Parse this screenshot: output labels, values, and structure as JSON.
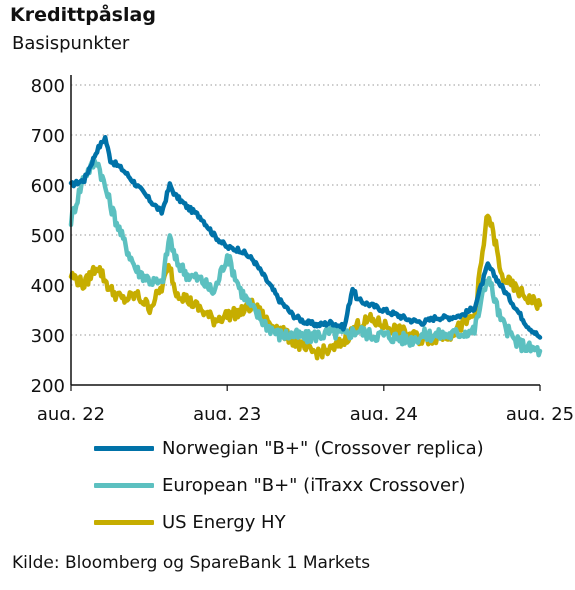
{
  "chart_data": {
    "type": "line",
    "title": "Kredittpåslag",
    "subtitle": "Basispunkter",
    "ylim": [
      200,
      800
    ],
    "yticks": [
      200,
      300,
      400,
      500,
      600,
      700,
      800
    ],
    "xlim": [
      "2022-08",
      "2025-08"
    ],
    "xticks": [
      {
        "label": "aug. 22",
        "date": "2022-08"
      },
      {
        "label": "aug. 23",
        "date": "2023-08"
      },
      {
        "label": "aug. 24",
        "date": "2024-08"
      },
      {
        "label": "aug. 25",
        "date": "2025-08"
      }
    ],
    "grid": "horizontal-dotted",
    "legend_placement": "bottom",
    "series": [
      {
        "name": "Norwegian \"B+\" (Crossover replica)",
        "color": "#0072a8",
        "points": [
          [
            "2022-08",
            600
          ],
          [
            "2022-09",
            610
          ],
          [
            "2022-10",
            670
          ],
          [
            "2022-10-20",
            695
          ],
          [
            "2022-11",
            650
          ],
          [
            "2022-12",
            630
          ],
          [
            "2023-01",
            600
          ],
          [
            "2023-02",
            570
          ],
          [
            "2023-03",
            545
          ],
          [
            "2023-03-20",
            600
          ],
          [
            "2023-04",
            580
          ],
          [
            "2023-05",
            555
          ],
          [
            "2023-06",
            535
          ],
          [
            "2023-07",
            500
          ],
          [
            "2023-08",
            475
          ],
          [
            "2023-09",
            470
          ],
          [
            "2023-10",
            450
          ],
          [
            "2023-11",
            410
          ],
          [
            "2023-12",
            370
          ],
          [
            "2024-01",
            340
          ],
          [
            "2024-02",
            325
          ],
          [
            "2024-03",
            320
          ],
          [
            "2024-04",
            325
          ],
          [
            "2024-05",
            315
          ],
          [
            "2024-05-20",
            395
          ],
          [
            "2024-06",
            370
          ],
          [
            "2024-07",
            360
          ],
          [
            "2024-08",
            350
          ],
          [
            "2024-09",
            340
          ],
          [
            "2024-10",
            330
          ],
          [
            "2024-11",
            325
          ],
          [
            "2024-12",
            335
          ],
          [
            "2025-01",
            335
          ],
          [
            "2025-02",
            340
          ],
          [
            "2025-03",
            355
          ],
          [
            "2025-04",
            440
          ],
          [
            "2025-05",
            400
          ],
          [
            "2025-06",
            360
          ],
          [
            "2025-07",
            320
          ],
          [
            "2025-08",
            295
          ]
        ]
      },
      {
        "name": "European \"B+\" (iTraxx Crossover)",
        "color": "#5cc0c0",
        "points": [
          [
            "2022-08",
            530
          ],
          [
            "2022-09",
            620
          ],
          [
            "2022-10",
            650
          ],
          [
            "2022-11",
            560
          ],
          [
            "2022-12",
            490
          ],
          [
            "2023-01",
            430
          ],
          [
            "2023-02",
            410
          ],
          [
            "2023-03",
            400
          ],
          [
            "2023-03-20",
            500
          ],
          [
            "2023-04",
            450
          ],
          [
            "2023-05",
            420
          ],
          [
            "2023-06",
            410
          ],
          [
            "2023-07",
            385
          ],
          [
            "2023-08",
            460
          ],
          [
            "2023-09",
            390
          ],
          [
            "2023-10",
            350
          ],
          [
            "2023-11",
            320
          ],
          [
            "2023-12",
            300
          ],
          [
            "2024-01",
            300
          ],
          [
            "2024-02",
            295
          ],
          [
            "2024-03",
            300
          ],
          [
            "2024-04",
            305
          ],
          [
            "2024-05",
            300
          ],
          [
            "2024-06",
            310
          ],
          [
            "2024-07",
            300
          ],
          [
            "2024-08",
            300
          ],
          [
            "2024-09",
            295
          ],
          [
            "2024-10",
            290
          ],
          [
            "2024-11",
            300
          ],
          [
            "2024-12",
            300
          ],
          [
            "2025-01",
            300
          ],
          [
            "2025-02",
            305
          ],
          [
            "2025-03",
            310
          ],
          [
            "2025-04",
            420
          ],
          [
            "2025-05",
            330
          ],
          [
            "2025-06",
            290
          ],
          [
            "2025-07",
            275
          ],
          [
            "2025-08",
            268
          ]
        ]
      },
      {
        "name": "US Energy HY",
        "color": "#c6ad00",
        "points": [
          [
            "2022-08",
            420
          ],
          [
            "2022-09",
            400
          ],
          [
            "2022-10",
            440
          ],
          [
            "2022-11",
            390
          ],
          [
            "2022-12",
            370
          ],
          [
            "2023-01",
            380
          ],
          [
            "2023-02",
            355
          ],
          [
            "2023-03",
            395
          ],
          [
            "2023-03-20",
            440
          ],
          [
            "2023-04",
            390
          ],
          [
            "2023-05",
            370
          ],
          [
            "2023-06",
            350
          ],
          [
            "2023-07",
            330
          ],
          [
            "2023-08",
            340
          ],
          [
            "2023-09",
            345
          ],
          [
            "2023-10",
            360
          ],
          [
            "2023-11",
            330
          ],
          [
            "2023-12",
            310
          ],
          [
            "2024-01",
            290
          ],
          [
            "2024-02",
            270
          ],
          [
            "2024-03",
            265
          ],
          [
            "2024-04",
            270
          ],
          [
            "2024-05",
            290
          ],
          [
            "2024-06",
            320
          ],
          [
            "2024-07",
            330
          ],
          [
            "2024-08",
            320
          ],
          [
            "2024-09",
            310
          ],
          [
            "2024-10",
            300
          ],
          [
            "2024-11",
            290
          ],
          [
            "2024-12",
            295
          ],
          [
            "2025-01",
            300
          ],
          [
            "2025-02",
            320
          ],
          [
            "2025-03",
            340
          ],
          [
            "2025-04",
            545
          ],
          [
            "2025-04-20",
            480
          ],
          [
            "2025-05",
            420
          ],
          [
            "2025-06",
            395
          ],
          [
            "2025-07",
            375
          ],
          [
            "2025-08",
            360
          ]
        ]
      }
    ]
  },
  "source": "Kilde: Bloomberg og SpareBank 1 Markets"
}
